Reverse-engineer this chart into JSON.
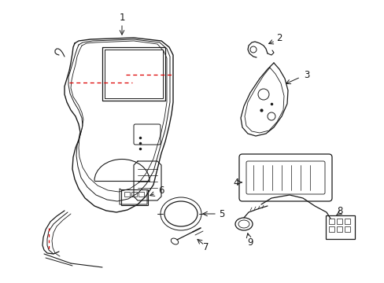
{
  "bg_color": "#ffffff",
  "line_color": "#1a1a1a",
  "red_color": "#dd0000",
  "lw": 0.9,
  "figsize": [
    4.89,
    3.6
  ],
  "dpi": 100
}
